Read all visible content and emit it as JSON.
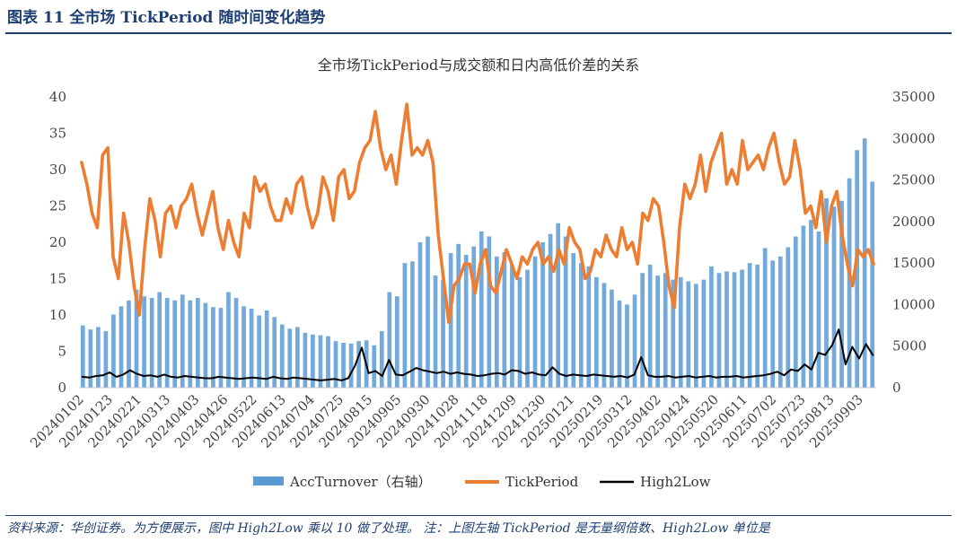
{
  "header": {
    "title": "图表 11 全市场 TickPeriod 随时间变化趋势"
  },
  "footer": {
    "source": "资料来源：华创证券。为方便展示，图中 High2Low 乘以 10 做了处理。 注：上图左轴 TickPeriod 是无量纲倍数、High2Low 单位是"
  },
  "colors": {
    "turnover": "#5b9bd5",
    "tick": "#ed7d31",
    "h2l": "#000000",
    "brand": "#1f3f73"
  },
  "chart_data": {
    "type": "line",
    "title": "全市场TickPeriod与成交额和日内高低价差的关系",
    "x_tick_labels": [
      "20240102",
      "20240123",
      "20240221",
      "20240313",
      "20240403",
      "20240426",
      "20240522",
      "20240613",
      "20240704",
      "20240725",
      "20240815",
      "20240905",
      "20240930",
      "20241028",
      "20241118",
      "20241209",
      "20241230",
      "20250121",
      "20250219",
      "20250312",
      "20250402",
      "20250424",
      "20250520",
      "20250611",
      "20250702",
      "20250723",
      "20250813",
      "20250903"
    ],
    "y_left": {
      "ticks": [
        0,
        5,
        10,
        15,
        20,
        25,
        30,
        35,
        40
      ],
      "lim": [
        0,
        40
      ]
    },
    "y_right": {
      "ticks": [
        0,
        5000,
        10000,
        15000,
        20000,
        25000,
        30000,
        35000
      ],
      "lim": [
        0,
        35000
      ]
    },
    "legend_position": "bottom",
    "series": [
      {
        "name": "AccTurnover（右轴）",
        "type": "bar",
        "axis": "right",
        "values": [
          7500,
          7000,
          7300,
          6800,
          8800,
          9800,
          10500,
          11800,
          11000,
          10800,
          11500,
          10800,
          10500,
          11200,
          10500,
          10800,
          10200,
          9700,
          9600,
          11500,
          10800,
          9800,
          9500,
          8700,
          9300,
          8500,
          7600,
          7100,
          7300,
          6600,
          6400,
          6300,
          6200,
          5600,
          5400,
          5300,
          5600,
          5700,
          5100,
          6800,
          11500,
          11000,
          15000,
          15200,
          17500,
          18200,
          13500,
          13000,
          16200,
          17300,
          16000,
          17000,
          18800,
          18200,
          15800,
          16300,
          14800,
          13300,
          14200,
          15800,
          17500,
          18500,
          19800,
          18200,
          16200,
          15000,
          14600,
          13300,
          12600,
          11800,
          10500,
          10000,
          11200,
          13800,
          14800,
          13500,
          13800,
          13000,
          13300,
          12800,
          12500,
          13000,
          14600,
          13800,
          14000,
          13900,
          14200,
          15000,
          14800,
          16800,
          15300,
          15800,
          16900,
          18200,
          19500,
          20200,
          18800,
          22800,
          21800,
          22500,
          25200,
          28600,
          30000,
          24800
        ]
      },
      {
        "name": "TickPeriod",
        "type": "line",
        "axis": "left",
        "values": [
          31,
          28,
          24,
          22,
          32,
          33,
          18,
          15,
          24,
          20,
          14,
          10,
          19,
          26,
          23,
          18,
          24,
          25,
          22,
          25,
          26,
          28,
          24,
          21,
          24,
          27,
          22,
          19,
          23,
          20,
          18,
          24,
          22,
          29,
          27,
          28,
          25,
          23,
          23,
          26,
          24,
          28,
          29,
          25,
          22,
          24,
          29,
          27,
          23,
          29,
          30,
          26,
          27,
          31,
          33,
          34,
          38,
          33,
          30,
          32,
          28,
          34,
          39,
          32,
          33,
          32,
          34,
          31,
          21,
          15,
          9,
          14,
          15,
          17,
          17,
          13,
          17,
          19,
          14,
          13,
          16,
          19,
          17,
          15,
          18,
          17,
          19,
          20,
          17,
          18,
          16,
          19,
          17,
          22,
          20,
          19,
          15,
          16,
          19,
          18,
          21,
          19,
          18,
          22,
          19,
          20,
          17,
          24,
          23,
          26,
          25,
          20,
          14,
          11,
          22,
          28,
          26,
          28,
          32,
          27,
          31,
          33,
          35,
          28,
          30,
          28,
          34,
          30,
          31,
          32,
          30,
          33,
          35,
          31,
          28,
          29,
          34,
          30,
          24,
          25,
          22,
          27,
          20,
          25,
          27,
          21,
          17,
          14,
          19,
          18,
          19,
          17
        ]
      },
      {
        "name": "High2Low",
        "type": "line",
        "axis": "left",
        "values": [
          1.5,
          1.4,
          1.6,
          1.7,
          2.1,
          1.5,
          1.8,
          2.4,
          1.9,
          1.6,
          1.7,
          1.5,
          1.8,
          1.5,
          1.4,
          1.6,
          1.5,
          1.4,
          1.3,
          1.3,
          1.5,
          1.4,
          1.3,
          1.2,
          1.3,
          1.4,
          1.3,
          1.2,
          1.5,
          1.3,
          1.2,
          1.4,
          1.3,
          1.2,
          1.1,
          1.0,
          1.1,
          1.2,
          1.0,
          1.3,
          3.0,
          5.5,
          2.0,
          2.3,
          1.6,
          3.8,
          1.8,
          1.7,
          2.2,
          2.7,
          2.4,
          2.2,
          2.0,
          2.2,
          1.9,
          2.1,
          1.9,
          1.8,
          1.6,
          1.7,
          1.9,
          2.0,
          1.8,
          2.4,
          2.3,
          1.9,
          2.1,
          1.8,
          1.7,
          2.8,
          1.9,
          1.6,
          1.8,
          1.7,
          1.6,
          1.8,
          1.7,
          1.6,
          1.5,
          1.6,
          1.4,
          1.8,
          4.2,
          1.7,
          1.5,
          1.5,
          1.6,
          1.4,
          1.5,
          1.6,
          1.4,
          1.5,
          1.6,
          1.4,
          1.5,
          1.5,
          1.6,
          1.4,
          1.5,
          1.6,
          1.7,
          1.9,
          2.2,
          1.7,
          2.5,
          2.3,
          3.2,
          2.5,
          4.8,
          4.5,
          5.8,
          8.0,
          3.2,
          5.6,
          4.0,
          6.0,
          4.5
        ]
      }
    ]
  }
}
